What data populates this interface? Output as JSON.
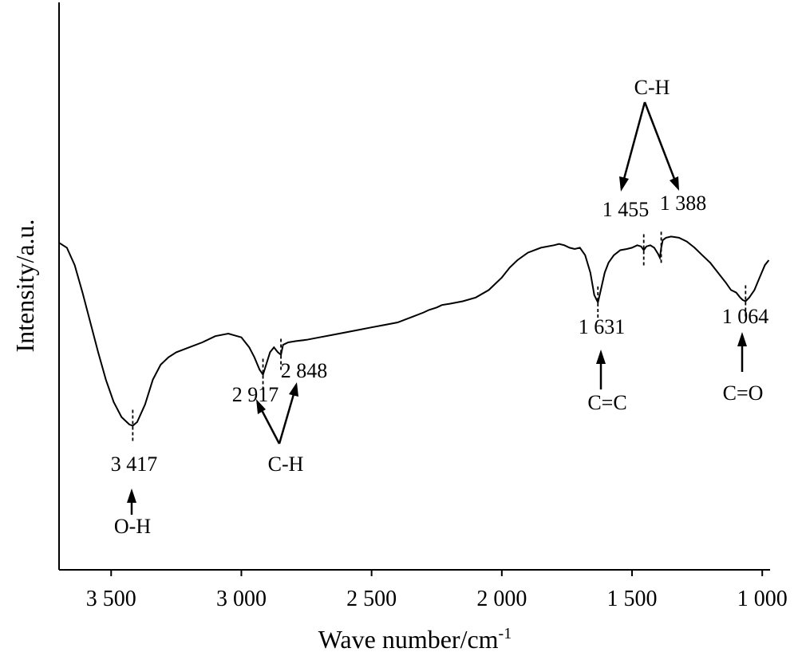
{
  "chart_data": {
    "type": "line",
    "title": "",
    "xlabel": "Wave number/cm",
    "xlabel_superscript": "-1",
    "ylabel": "Intensity/a.u.",
    "xlim": [
      3700,
      970
    ],
    "x_reversed": true,
    "ylim": [
      0,
      100
    ],
    "y_ticks_shown": false,
    "grid": false,
    "x_ticks": [
      3500,
      3000,
      2500,
      2000,
      1500,
      1000
    ],
    "x_tick_labels": [
      "3 500",
      "3 000",
      "2 500",
      "2 000",
      "1 500",
      "1 000"
    ],
    "series": [
      {
        "x": [
          3700,
          3670,
          3640,
          3610,
          3580,
          3550,
          3520,
          3490,
          3460,
          3430,
          3417,
          3400,
          3370,
          3340,
          3310,
          3280,
          3250,
          3200,
          3150,
          3100,
          3050,
          3000,
          2970,
          2950,
          2930,
          2917,
          2905,
          2890,
          2875,
          2860,
          2848,
          2840,
          2820,
          2790,
          2750,
          2700,
          2650,
          2600,
          2550,
          2500,
          2450,
          2400,
          2350,
          2300,
          2280,
          2250,
          2230,
          2200,
          2150,
          2100,
          2050,
          2000,
          1970,
          1940,
          1900,
          1850,
          1800,
          1780,
          1760,
          1740,
          1720,
          1700,
          1680,
          1660,
          1645,
          1631,
          1620,
          1605,
          1590,
          1570,
          1545,
          1520,
          1500,
          1480,
          1465,
          1455,
          1445,
          1430,
          1415,
          1400,
          1393,
          1388,
          1382,
          1370,
          1350,
          1320,
          1290,
          1260,
          1230,
          1200,
          1170,
          1140,
          1120,
          1100,
          1085,
          1075,
          1064,
          1050,
          1030,
          1010,
          990,
          975
        ],
        "y": [
          82,
          80,
          73,
          62,
          50,
          38,
          27,
          18,
          12,
          9,
          8.5,
          10,
          17,
          27,
          33,
          36,
          38,
          40,
          42,
          44.5,
          45.5,
          44,
          40,
          36,
          31,
          29,
          33,
          38,
          40,
          38,
          37,
          41,
          42,
          42.5,
          43,
          44,
          45,
          46,
          47,
          48,
          49,
          50,
          52,
          54,
          55,
          56,
          57,
          57.5,
          58.5,
          60,
          63,
          68,
          72,
          75,
          78,
          80,
          81,
          81.5,
          81,
          80,
          79.5,
          80,
          77,
          70,
          61,
          58,
          63,
          70,
          74,
          77,
          79,
          79.5,
          80,
          81,
          80.5,
          79,
          80.5,
          81,
          80,
          77.5,
          76,
          80,
          83,
          84,
          84.5,
          84,
          82.5,
          80,
          77,
          74,
          70,
          66,
          63,
          62,
          60,
          59,
          58.5,
          60,
          63,
          68,
          73,
          75
        ]
      }
    ],
    "peaks": [
      {
        "x": 3417,
        "label": "3 417",
        "assignment": "O-H"
      },
      {
        "x": 2917,
        "label": "2 917",
        "assignment": "C-H"
      },
      {
        "x": 2848,
        "label": "2 848",
        "assignment": "C-H"
      },
      {
        "x": 1631,
        "label": "1 631",
        "assignment": "C=C"
      },
      {
        "x": 1455,
        "label": "1 455",
        "assignment": "C-H"
      },
      {
        "x": 1388,
        "label": "1 388",
        "assignment": "C-H"
      },
      {
        "x": 1064,
        "label": "1 064",
        "assignment": "C=O"
      }
    ],
    "group_labels": {
      "oh": "O-H",
      "ch_left": "C-H",
      "cc": "C=C",
      "ch_right": "C-H",
      "co": "C=O"
    }
  }
}
